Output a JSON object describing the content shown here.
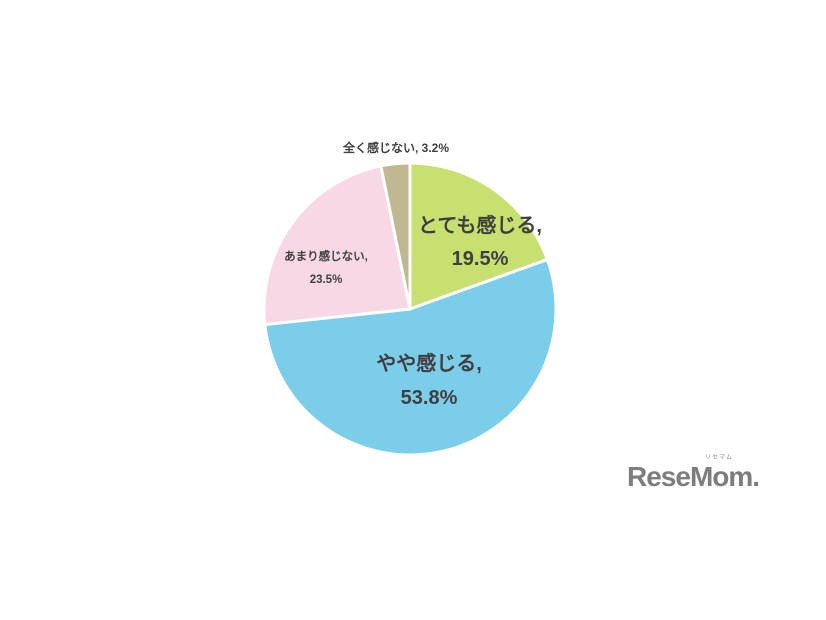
{
  "chart_data": {
    "type": "pie",
    "title": "",
    "start_angle_deg": 0,
    "direction": "clockwise",
    "legend_position": "none",
    "background": "#ffffff",
    "stroke_color": "#ffffff",
    "label_text_color": "#3f3f3f",
    "categories": [
      "とても感じる",
      "やや感じる",
      "あまり感じない",
      "全く感じない"
    ],
    "values": [
      19.5,
      53.8,
      23.5,
      3.2
    ],
    "slices": [
      {
        "label": "とても感じる",
        "value": 19.5,
        "color": "#c7e06f",
        "label_line1": "とても感じる,",
        "label_line2": "19.5%",
        "placement": "inside"
      },
      {
        "label": "やや感じる",
        "value": 53.8,
        "color": "#7ccde9",
        "label_line1": "やや感じる,",
        "label_line2": "53.8%",
        "placement": "inside"
      },
      {
        "label": "あまり感じない",
        "value": 23.5,
        "color": "#f9d8e5",
        "label_line1": "あまり感じない,",
        "label_line2": "23.5%",
        "placement": "inside"
      },
      {
        "label": "全く感じない",
        "value": 3.2,
        "color": "#c0b793",
        "label_text": "全く感じない, 3.2%",
        "placement": "outside-top"
      }
    ]
  },
  "logo": {
    "text": "ReseMom",
    "period": ".",
    "ruby": "リセマム"
  }
}
